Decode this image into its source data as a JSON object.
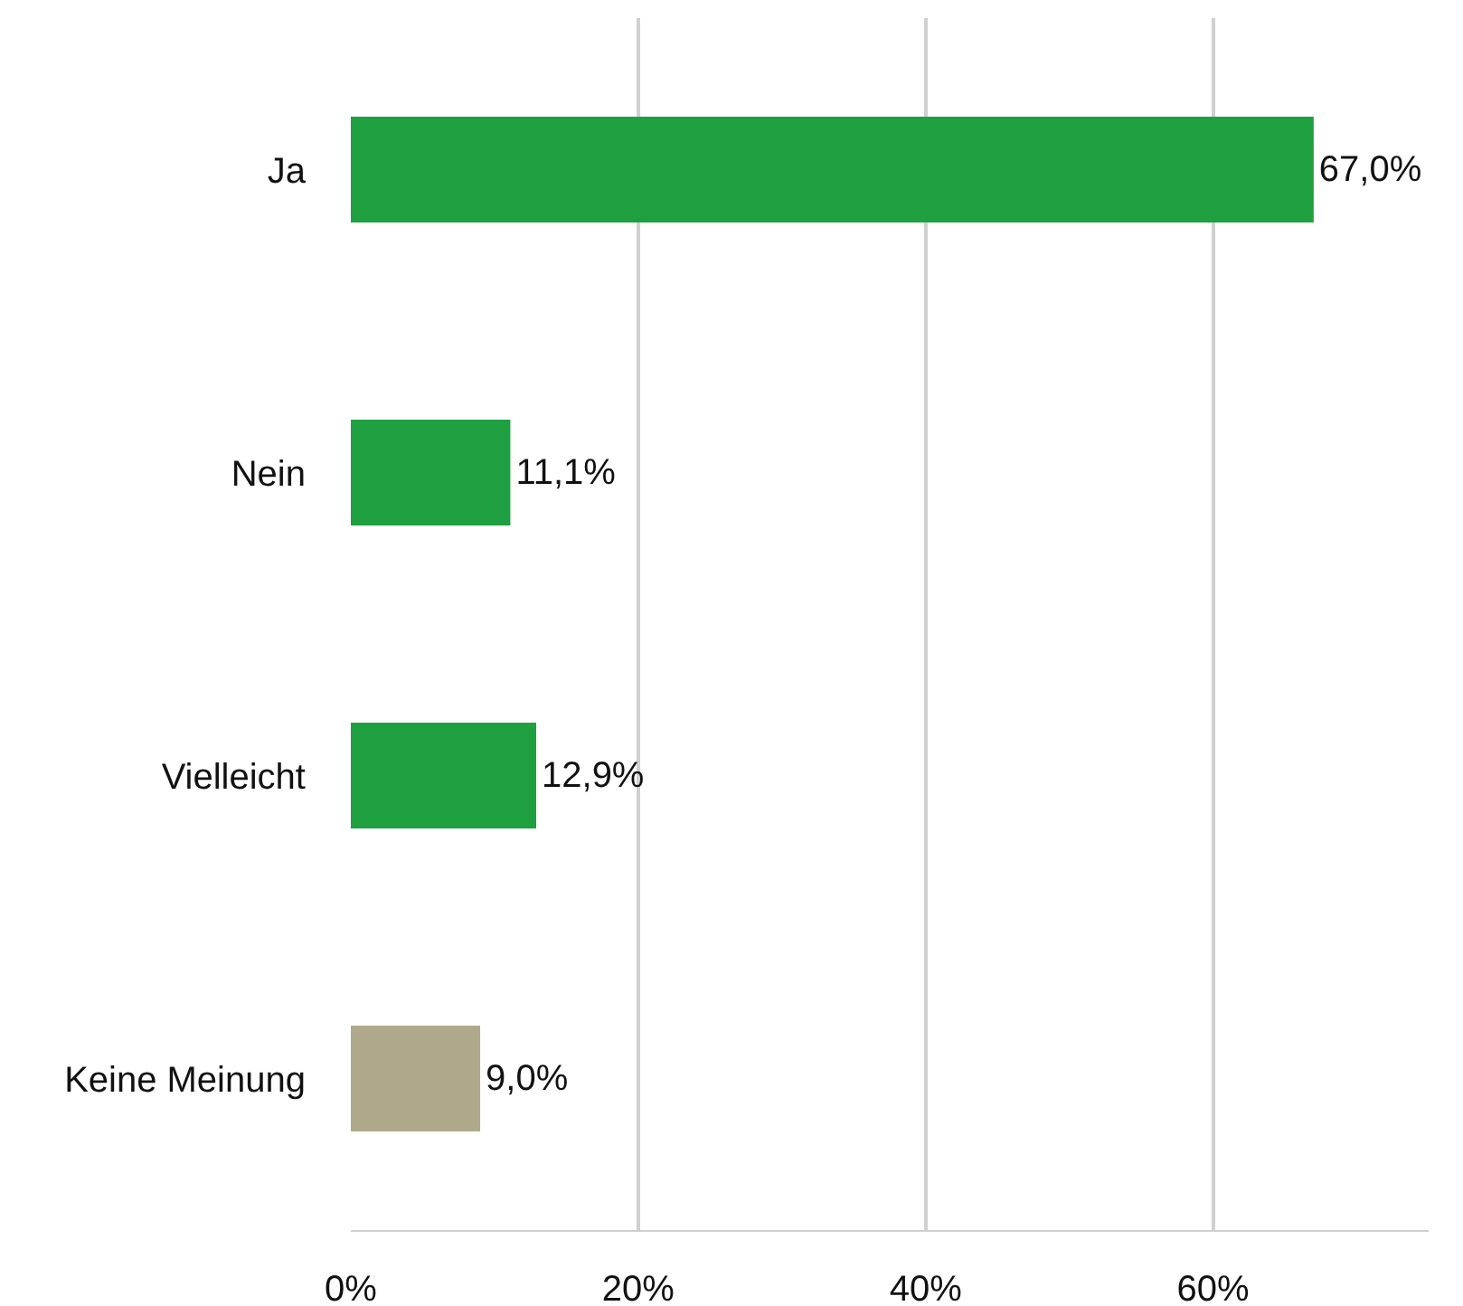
{
  "chart_data": {
    "type": "bar",
    "orientation": "horizontal",
    "categories": [
      "Ja",
      "Nein",
      "Vielleicht",
      "Keine Meinung"
    ],
    "values": [
      67.0,
      11.1,
      12.9,
      9.0
    ],
    "colors": [
      "#1fa040",
      "#1fa040",
      "#1fa040",
      "#b0a88a"
    ],
    "value_labels": [
      "67,0%",
      "11,1%",
      "12,9%",
      "9,0%"
    ],
    "xticks": [
      {
        "value": 0,
        "label": "0%"
      },
      {
        "value": 20,
        "label": "20%"
      },
      {
        "value": 40,
        "label": "40%"
      },
      {
        "value": 60,
        "label": "60%"
      }
    ],
    "xlim": [
      0,
      75
    ],
    "grid": "x",
    "legend": false
  }
}
